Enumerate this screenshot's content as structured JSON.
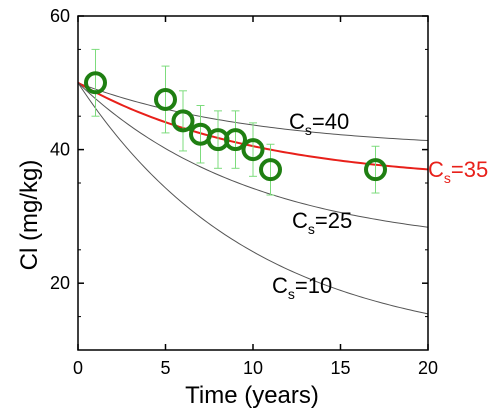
{
  "chart_data": {
    "type": "scatter",
    "xlabel": "Time (years)",
    "ylabel": "Cl (mg/kg)",
    "xlim": [
      0,
      20
    ],
    "ylim": [
      10,
      60
    ],
    "xticks": [
      0,
      5,
      10,
      15,
      20
    ],
    "yticks": [
      20,
      40,
      60
    ],
    "grid": false,
    "colors": {
      "axis": "#000000",
      "curve_gray": "#555555",
      "fit": "#e8201a",
      "marker": "#1f7f12",
      "errorbar": "#7ddc7d"
    },
    "points": [
      {
        "x": 1,
        "y": 50,
        "err": 5
      },
      {
        "x": 5,
        "y": 47.5,
        "err": 5
      },
      {
        "x": 6,
        "y": 44.3,
        "err": 4.5
      },
      {
        "x": 7,
        "y": 42.3,
        "err": 4.3
      },
      {
        "x": 8,
        "y": 41.5,
        "err": 4.3
      },
      {
        "x": 9,
        "y": 41.5,
        "err": 4.3
      },
      {
        "x": 10,
        "y": 40,
        "err": 4
      },
      {
        "x": 11,
        "y": 37,
        "err": 3.8
      },
      {
        "x": 17,
        "y": 37,
        "err": 3.5
      }
    ],
    "series": [
      {
        "cs": 40,
        "label_main": "C",
        "label_sub": "s",
        "label_tail": "=40",
        "highlight": false
      },
      {
        "cs": 35,
        "label_main": "C",
        "label_sub": "s",
        "label_tail": "=35",
        "highlight": true
      },
      {
        "cs": 25,
        "label_main": "C",
        "label_sub": "s",
        "label_tail": "=25",
        "highlight": false
      },
      {
        "cs": 10,
        "label_main": "C",
        "label_sub": "s",
        "label_tail": "=10",
        "highlight": false
      }
    ],
    "model": {
      "c0": 50,
      "k": 0.1
    }
  }
}
